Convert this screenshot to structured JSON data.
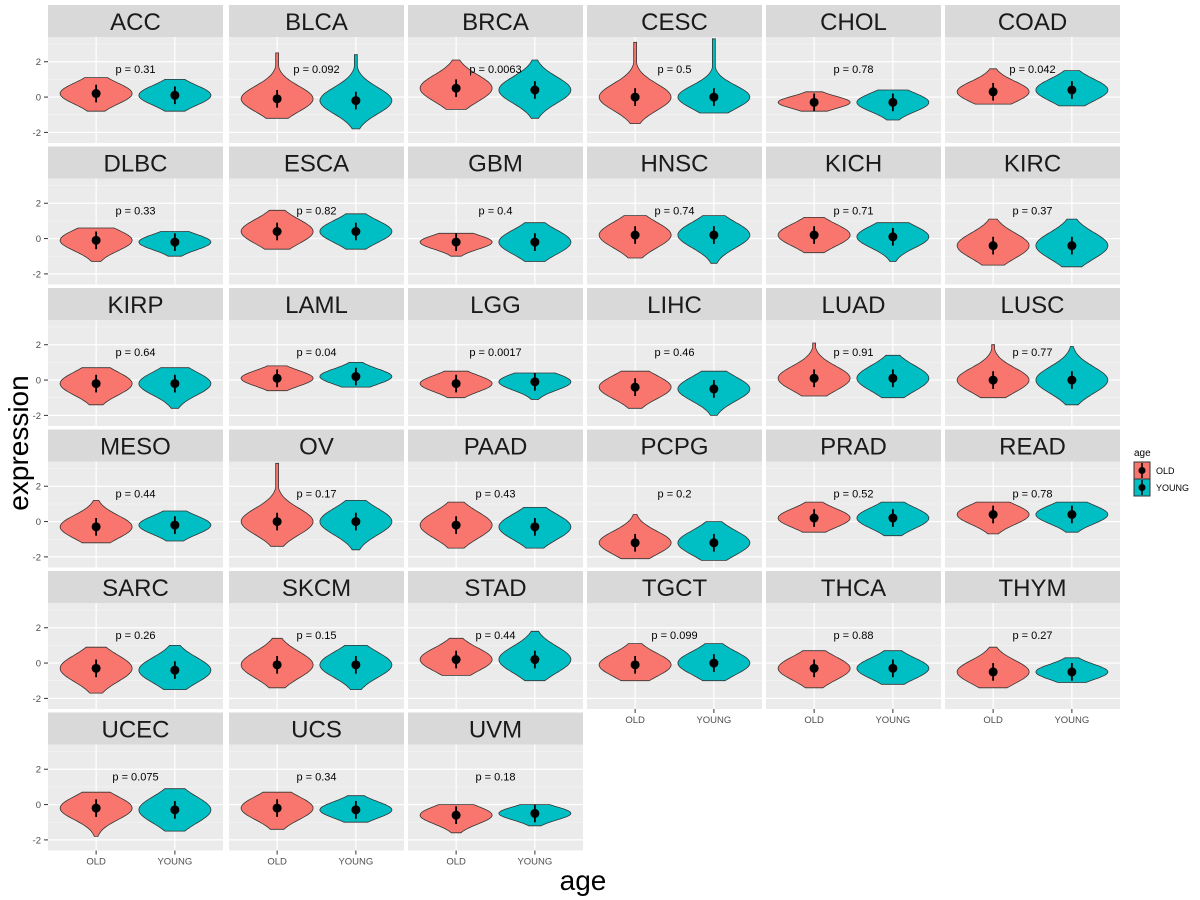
{
  "chart_data": {
    "type": "violin",
    "xlabel": "age",
    "ylabel": "expression",
    "categories": [
      "OLD",
      "YOUNG"
    ],
    "ylim": [
      -2.6,
      3.4
    ],
    "yticks": [
      -2,
      0,
      2
    ],
    "legend": {
      "title": "age",
      "entries": [
        "OLD",
        "YOUNG"
      ],
      "placement": "right"
    },
    "colors": {
      "OLD": "#F8766D",
      "YOUNG": "#00BFC4"
    },
    "panels": [
      {
        "name": "ACC",
        "p": "p = 0.31",
        "old": [
          0.2,
          -0.8,
          1.1
        ],
        "young": [
          0.1,
          -0.8,
          1.0
        ]
      },
      {
        "name": "BLCA",
        "p": "p = 0.092",
        "old": [
          -0.1,
          -1.2,
          2.5
        ],
        "young": [
          -0.2,
          -1.8,
          2.4
        ]
      },
      {
        "name": "BRCA",
        "p": "p = 0.0063",
        "old": [
          0.5,
          -0.7,
          2.1
        ],
        "young": [
          0.4,
          -1.2,
          2.1
        ]
      },
      {
        "name": "CESC",
        "p": "p = 0.5",
        "old": [
          0.0,
          -1.5,
          3.1
        ],
        "young": [
          0.0,
          -0.9,
          3.3
        ]
      },
      {
        "name": "CHOL",
        "p": "p = 0.78",
        "old": [
          -0.3,
          -0.8,
          0.3
        ],
        "young": [
          -0.3,
          -1.3,
          0.4
        ]
      },
      {
        "name": "COAD",
        "p": "p = 0.042",
        "old": [
          0.3,
          -0.4,
          1.6
        ],
        "young": [
          0.4,
          -0.5,
          1.5
        ]
      },
      {
        "name": "DLBC",
        "p": "p = 0.33",
        "old": [
          -0.1,
          -1.3,
          0.6
        ],
        "young": [
          -0.2,
          -1.0,
          0.4
        ]
      },
      {
        "name": "ESCA",
        "p": "p = 0.82",
        "old": [
          0.4,
          -0.6,
          1.6
        ],
        "young": [
          0.4,
          -0.6,
          1.4
        ]
      },
      {
        "name": "GBM",
        "p": "p = 0.4",
        "old": [
          -0.2,
          -1.0,
          0.3
        ],
        "young": [
          -0.2,
          -1.3,
          0.9
        ]
      },
      {
        "name": "HNSC",
        "p": "p = 0.74",
        "old": [
          0.2,
          -1.1,
          1.3
        ],
        "young": [
          0.2,
          -1.4,
          1.3
        ]
      },
      {
        "name": "KICH",
        "p": "p = 0.71",
        "old": [
          0.2,
          -0.8,
          1.2
        ],
        "young": [
          0.1,
          -1.3,
          0.9
        ]
      },
      {
        "name": "KIRC",
        "p": "p = 0.37",
        "old": [
          -0.4,
          -1.5,
          1.1
        ],
        "young": [
          -0.4,
          -1.6,
          1.1
        ]
      },
      {
        "name": "KIRP",
        "p": "p = 0.64",
        "old": [
          -0.2,
          -1.4,
          0.7
        ],
        "young": [
          -0.2,
          -1.6,
          0.7
        ]
      },
      {
        "name": "LAML",
        "p": "p = 0.04",
        "old": [
          0.1,
          -0.6,
          0.8
        ],
        "young": [
          0.2,
          -0.4,
          1.0
        ]
      },
      {
        "name": "LGG",
        "p": "p = 0.0017",
        "old": [
          -0.2,
          -1.0,
          0.5
        ],
        "young": [
          -0.1,
          -1.1,
          0.4
        ]
      },
      {
        "name": "LIHC",
        "p": "p = 0.46",
        "old": [
          -0.4,
          -1.6,
          0.5
        ],
        "young": [
          -0.5,
          -2.0,
          0.5
        ]
      },
      {
        "name": "LUAD",
        "p": "p = 0.91",
        "old": [
          0.1,
          -0.9,
          2.1
        ],
        "young": [
          0.1,
          -1.0,
          1.4
        ]
      },
      {
        "name": "LUSC",
        "p": "p = 0.77",
        "old": [
          0.0,
          -1.0,
          2.0
        ],
        "young": [
          0.0,
          -1.4,
          1.9
        ]
      },
      {
        "name": "MESO",
        "p": "p = 0.44",
        "old": [
          -0.3,
          -1.2,
          1.2
        ],
        "young": [
          -0.2,
          -1.1,
          0.6
        ]
      },
      {
        "name": "OV",
        "p": "p = 0.17",
        "old": [
          0.0,
          -1.4,
          3.3
        ],
        "young": [
          0.0,
          -1.6,
          1.2
        ]
      },
      {
        "name": "PAAD",
        "p": "p = 0.43",
        "old": [
          -0.2,
          -1.5,
          1.1
        ],
        "young": [
          -0.3,
          -1.5,
          0.8
        ]
      },
      {
        "name": "PCPG",
        "p": "p = 0.2",
        "old": [
          -1.2,
          -2.1,
          0.4
        ],
        "young": [
          -1.2,
          -2.2,
          0.0
        ]
      },
      {
        "name": "PRAD",
        "p": "p = 0.52",
        "old": [
          0.2,
          -0.6,
          1.1
        ],
        "young": [
          0.2,
          -0.8,
          1.1
        ]
      },
      {
        "name": "READ",
        "p": "p = 0.78",
        "old": [
          0.4,
          -0.7,
          1.1
        ],
        "young": [
          0.4,
          -0.6,
          1.1
        ]
      },
      {
        "name": "SARC",
        "p": "p = 0.26",
        "old": [
          -0.3,
          -1.7,
          0.9
        ],
        "young": [
          -0.4,
          -1.5,
          1.0
        ]
      },
      {
        "name": "SKCM",
        "p": "p = 0.15",
        "old": [
          -0.1,
          -1.4,
          1.4
        ],
        "young": [
          -0.1,
          -1.5,
          1.0
        ]
      },
      {
        "name": "STAD",
        "p": "p = 0.44",
        "old": [
          0.2,
          -0.7,
          1.4
        ],
        "young": [
          0.2,
          -1.0,
          1.8
        ]
      },
      {
        "name": "TGCT",
        "p": "p = 0.099",
        "old": [
          -0.1,
          -1.0,
          1.1
        ],
        "young": [
          0.0,
          -1.0,
          1.1
        ]
      },
      {
        "name": "THCA",
        "p": "p = 0.88",
        "old": [
          -0.3,
          -1.4,
          0.7
        ],
        "young": [
          -0.3,
          -1.2,
          0.7
        ]
      },
      {
        "name": "THYM",
        "p": "p = 0.27",
        "old": [
          -0.5,
          -1.4,
          0.9
        ],
        "young": [
          -0.5,
          -1.1,
          0.3
        ]
      },
      {
        "name": "UCEC",
        "p": "p = 0.075",
        "old": [
          -0.2,
          -1.8,
          0.7
        ],
        "young": [
          -0.3,
          -1.5,
          0.9
        ]
      },
      {
        "name": "UCS",
        "p": "p = 0.34",
        "old": [
          -0.2,
          -1.4,
          0.7
        ],
        "young": [
          -0.3,
          -1.0,
          0.5
        ]
      },
      {
        "name": "UVM",
        "p": "p = 0.18",
        "old": [
          -0.6,
          -1.6,
          0.0
        ],
        "young": [
          -0.5,
          -1.2,
          0.0
        ]
      }
    ]
  }
}
